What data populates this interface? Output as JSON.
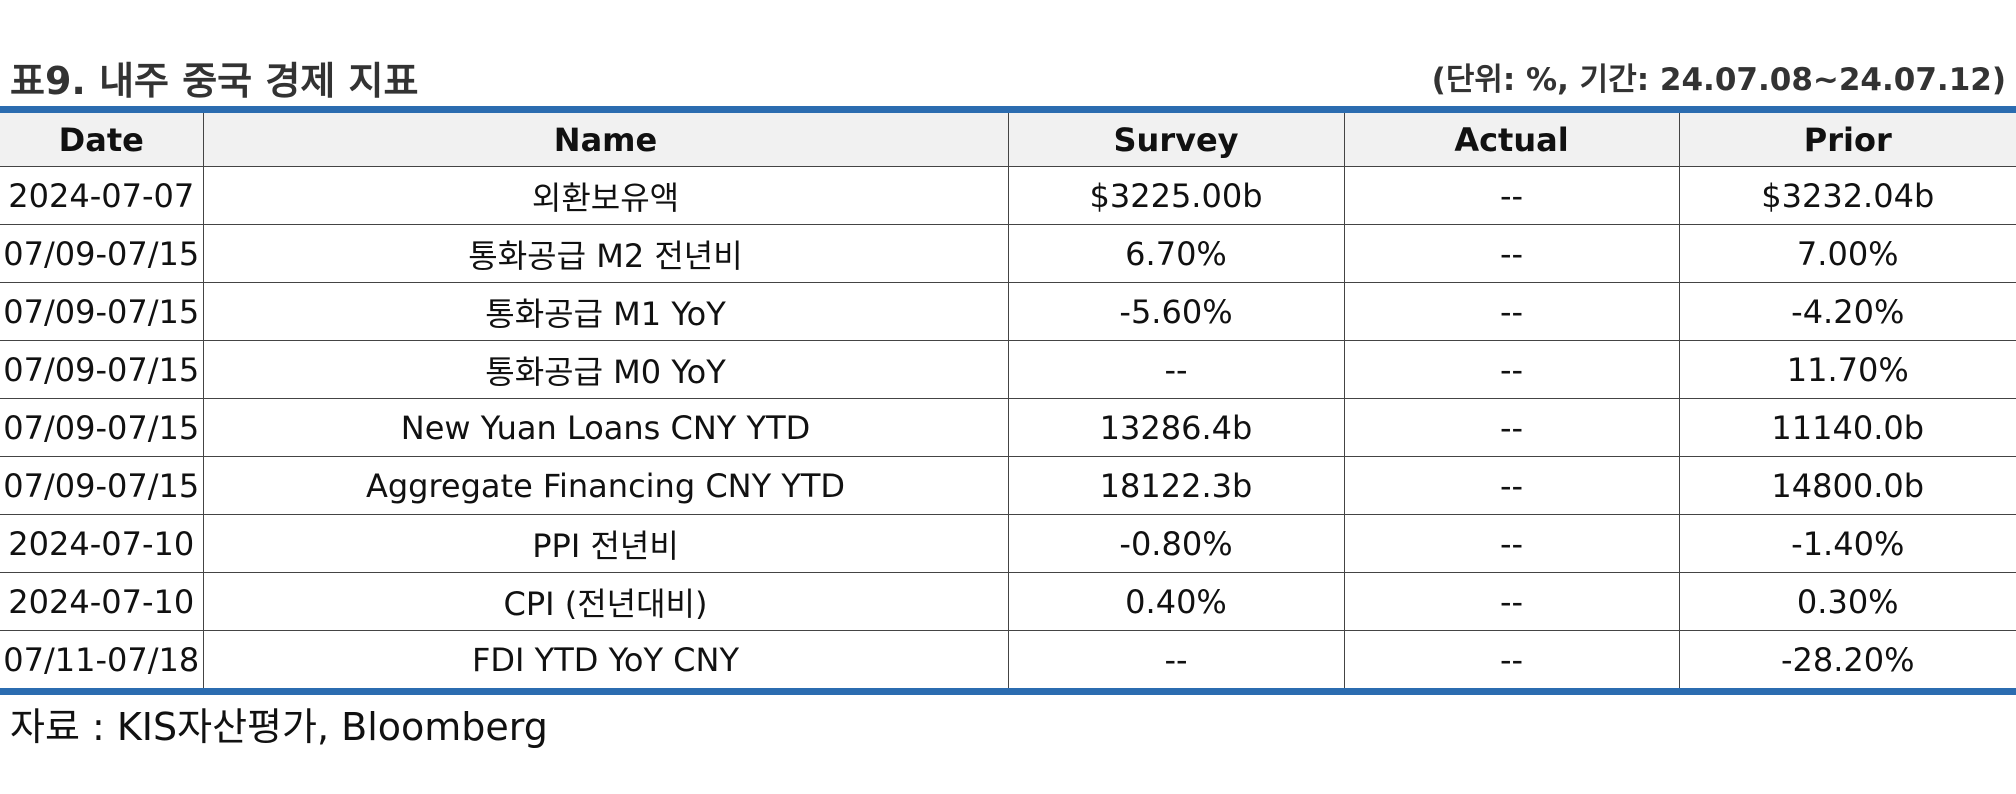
{
  "header": {
    "title": "표9. 내주 중국 경제 지표",
    "unit_note": "(단위: %, 기간: 24.07.08~24.07.12)"
  },
  "table": {
    "columns": [
      "Date",
      "Name",
      "Survey",
      "Actual",
      "Prior"
    ],
    "rows": [
      [
        "2024-07-07",
        "외환보유액",
        "$3225.00b",
        "--",
        "$3232.04b"
      ],
      [
        "07/09-07/15",
        "통화공급 M2 전년비",
        "6.70%",
        "--",
        "7.00%"
      ],
      [
        "07/09-07/15",
        "통화공급 M1 YoY",
        "-5.60%",
        "--",
        "-4.20%"
      ],
      [
        "07/09-07/15",
        "통화공급 M0 YoY",
        "--",
        "--",
        "11.70%"
      ],
      [
        "07/09-07/15",
        "New Yuan Loans CNY YTD",
        "13286.4b",
        "--",
        "11140.0b"
      ],
      [
        "07/09-07/15",
        "Aggregate Financing CNY YTD",
        "18122.3b",
        "--",
        "14800.0b"
      ],
      [
        "2024-07-10",
        "PPI 전년비",
        "-0.80%",
        "--",
        "-1.40%"
      ],
      [
        "2024-07-10",
        "CPI (전년대비)",
        "0.40%",
        "--",
        "0.30%"
      ],
      [
        "07/11-07/18",
        "FDI YTD YoY CNY",
        "--",
        "--",
        "-28.20%"
      ]
    ]
  },
  "footer": {
    "source": "자료 : KIS자산평가, Bloomberg"
  },
  "colors": {
    "accent_rule": "#2b6cb0",
    "header_bg": "#f1f1f1"
  }
}
